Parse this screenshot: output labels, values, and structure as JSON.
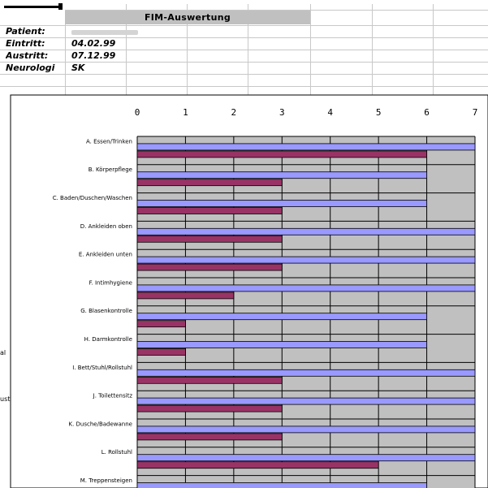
{
  "sheet": {
    "title": "FIM-Auswertung",
    "rows": [
      {
        "label": "Patient:",
        "value": ""
      },
      {
        "label": "Eintritt:",
        "value": "04.02.99"
      },
      {
        "label": "Austritt:",
        "value": "07.12.99"
      },
      {
        "label": "Neurologi",
        "value": "SK"
      }
    ]
  },
  "side_labels": [
    "al",
    "ustisch"
  ],
  "colors": {
    "plot_bg": "#c0c0c0",
    "series_1": "#9999ff",
    "series_2": "#993366",
    "gridline": "#000000",
    "sheet_grid": "#c8c8c8"
  },
  "chart_data": {
    "type": "bar",
    "orientation": "horizontal",
    "title": "",
    "xlabel": "",
    "ylabel": "",
    "xlim": [
      0,
      7
    ],
    "x_ticks": [
      "0",
      "1",
      "2",
      "3",
      "4",
      "5",
      "6",
      "7"
    ],
    "x_axis_position": "top",
    "grid": true,
    "categories": [
      "A. Essen/Trinken",
      "B. Körperpflege",
      "C. Baden/Duschen/Waschen",
      "D. Ankleiden oben",
      "E. Ankleiden unten",
      "F. Intimhygiene",
      "G. Blasenkontrolle",
      "H. Darmkontrolle",
      "I. Bett/Stuhl/Rollstuhl",
      "J. Toilettensitz",
      "K. Dusche/Badewanne",
      "L. Rollstuhl",
      "M. Treppensteigen"
    ],
    "series": [
      {
        "values": [
          7,
          6,
          6,
          7,
          7,
          7,
          6,
          6,
          7,
          7,
          7,
          7,
          6
        ]
      },
      {
        "values": [
          6,
          3,
          3,
          3,
          3,
          2,
          1,
          1,
          3,
          3,
          3,
          5,
          5
        ]
      }
    ]
  }
}
